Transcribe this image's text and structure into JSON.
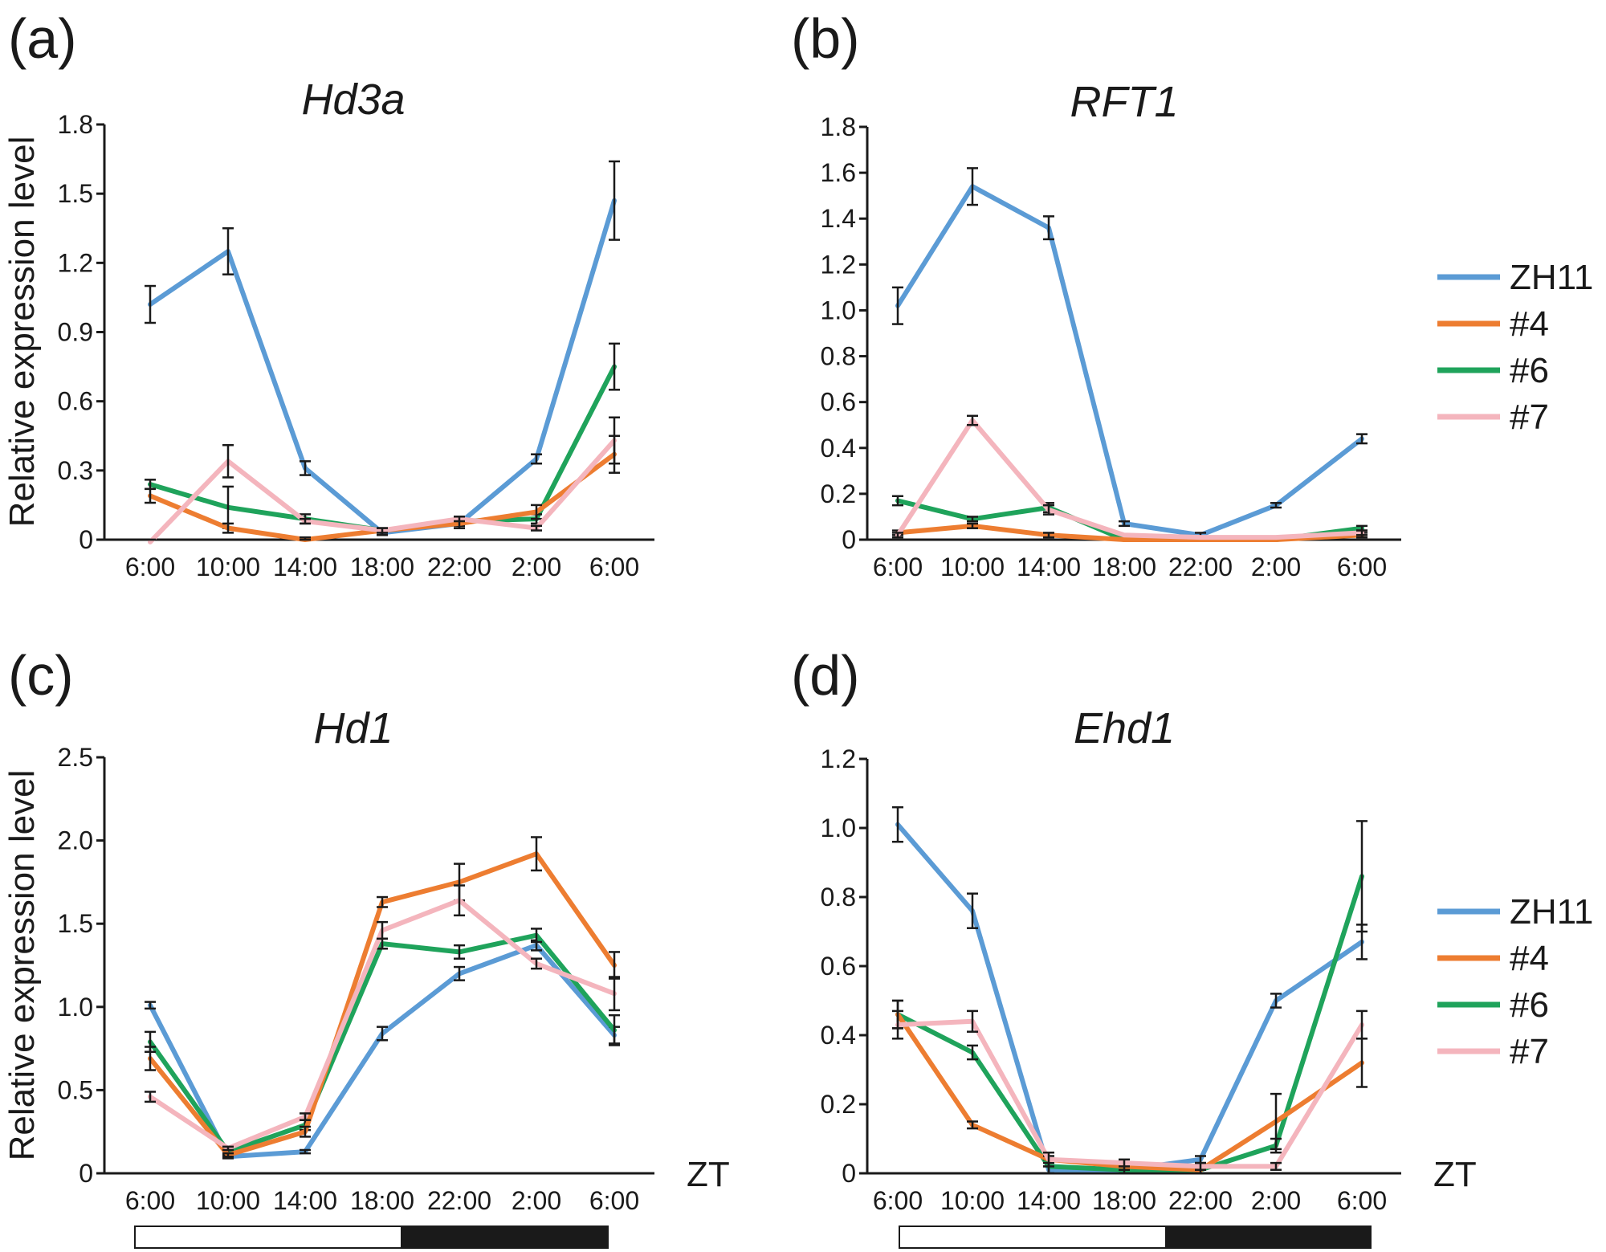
{
  "colors": {
    "ZH11": "#5b9bd5",
    "#4": "#ed7d31",
    "#6": "#1fa35b",
    "#7": "#f4b5bd",
    "axis": "#1a1a1a"
  },
  "legend": {
    "entries": [
      "ZH11",
      "#4",
      "#6",
      "#7"
    ]
  },
  "zt_label": "ZT",
  "chart_data": [
    {
      "panel": "(a)",
      "title": "Hd3a",
      "type": "line",
      "ylabel": "Relative expression level",
      "categories": [
        "6:00",
        "10:00",
        "14:00",
        "18:00",
        "22:00",
        "2:00",
        "6:00"
      ],
      "ylim": [
        0,
        1.8
      ],
      "yticks": [
        "0",
        "0.3",
        "0.6",
        "0.9",
        "1.2",
        "1.5",
        "1.8"
      ],
      "ytick_values": [
        0,
        0.3,
        0.6,
        0.9,
        1.2,
        1.5,
        1.8
      ],
      "series": [
        {
          "name": "ZH11",
          "values": [
            1.02,
            1.25,
            0.31,
            0.03,
            0.07,
            0.35,
            1.47
          ],
          "errors": [
            0.08,
            0.1,
            0.03,
            0.01,
            0.02,
            0.02,
            0.17
          ]
        },
        {
          "name": "#4",
          "values": [
            0.19,
            0.05,
            0.0,
            0.04,
            0.07,
            0.12,
            0.37
          ],
          "errors": [
            0.03,
            0.02,
            0.01,
            0.01,
            0.02,
            0.03,
            0.08
          ]
        },
        {
          "name": "#6",
          "values": [
            0.24,
            0.14,
            0.09,
            0.04,
            0.08,
            0.09,
            0.75
          ],
          "errors": [
            0.02,
            0.09,
            0.02,
            0.01,
            0.02,
            0.02,
            0.1
          ]
        },
        {
          "name": "#7",
          "values": [
            -0.01,
            0.34,
            0.08,
            0.04,
            0.09,
            0.05,
            0.43
          ],
          "errors": [
            0.01,
            0.07,
            0.01,
            0.01,
            0.01,
            0.01,
            0.1
          ]
        }
      ],
      "legend": true,
      "grid": false
    },
    {
      "panel": "(b)",
      "title": "RFT1",
      "type": "line",
      "ylabel": "",
      "categories": [
        "6:00",
        "10:00",
        "14:00",
        "18:00",
        "22:00",
        "2:00",
        "6:00"
      ],
      "ylim": [
        0,
        1.8
      ],
      "yticks": [
        "0",
        "0.2",
        "0.4",
        "0.6",
        "0.8",
        "1.0",
        "1.2",
        "1.4",
        "1.6",
        "1.8"
      ],
      "ytick_values": [
        0,
        0.2,
        0.4,
        0.6,
        0.8,
        1.0,
        1.2,
        1.4,
        1.6,
        1.8
      ],
      "series": [
        {
          "name": "ZH11",
          "values": [
            1.02,
            1.54,
            1.36,
            0.07,
            0.02,
            0.15,
            0.44
          ],
          "errors": [
            0.08,
            0.08,
            0.05,
            0.01,
            0.01,
            0.01,
            0.02
          ]
        },
        {
          "name": "#4",
          "values": [
            0.03,
            0.06,
            0.02,
            0.0,
            0.0,
            0.0,
            0.02
          ],
          "errors": [
            0.01,
            0.01,
            0.01,
            0.0,
            0.0,
            0.0,
            0.01
          ]
        },
        {
          "name": "#6",
          "values": [
            0.17,
            0.09,
            0.14,
            0.0,
            0.0,
            0.0,
            0.05
          ],
          "errors": [
            0.02,
            0.01,
            0.02,
            0.0,
            0.0,
            0.0,
            0.01
          ]
        },
        {
          "name": "#7",
          "values": [
            0.02,
            0.52,
            0.13,
            0.02,
            0.01,
            0.01,
            0.03
          ],
          "errors": [
            0.01,
            0.02,
            0.02,
            0.0,
            0.0,
            0.0,
            0.01
          ]
        }
      ],
      "legend": true,
      "grid": false
    },
    {
      "panel": "(c)",
      "title": "Hd1",
      "type": "line",
      "ylabel": "Relative expression level",
      "categories": [
        "6:00",
        "10:00",
        "14:00",
        "18:00",
        "22:00",
        "2:00",
        "6:00"
      ],
      "ylim": [
        0,
        2.5
      ],
      "yticks": [
        "0",
        "0.5",
        "1.0",
        "1.5",
        "2.0",
        "2.5"
      ],
      "ytick_values": [
        0,
        0.5,
        1.0,
        1.5,
        2.0,
        2.5
      ],
      "series": [
        {
          "name": "ZH11",
          "values": [
            1.01,
            0.1,
            0.13,
            0.84,
            1.2,
            1.37,
            0.83
          ],
          "errors": [
            0.02,
            0.01,
            0.01,
            0.04,
            0.04,
            0.03,
            0.05
          ]
        },
        {
          "name": "#4",
          "values": [
            0.69,
            0.11,
            0.25,
            1.63,
            1.75,
            1.92,
            1.25
          ],
          "errors": [
            0.07,
            0.01,
            0.03,
            0.03,
            0.11,
            0.1,
            0.08
          ]
        },
        {
          "name": "#6",
          "values": [
            0.79,
            0.13,
            0.29,
            1.38,
            1.33,
            1.43,
            0.86
          ],
          "errors": [
            0.06,
            0.01,
            0.03,
            0.03,
            0.04,
            0.04,
            0.09
          ]
        },
        {
          "name": "#7",
          "values": [
            0.46,
            0.15,
            0.34,
            1.46,
            1.64,
            1.26,
            1.08
          ],
          "errors": [
            0.03,
            0.01,
            0.02,
            0.05,
            0.09,
            0.03,
            0.1
          ]
        }
      ],
      "legend": false,
      "grid": false
    },
    {
      "panel": "(d)",
      "title": "Ehd1",
      "type": "line",
      "ylabel": "",
      "categories": [
        "6:00",
        "10:00",
        "14:00",
        "18:00",
        "22:00",
        "2:00",
        "6:00"
      ],
      "ylim": [
        0,
        1.2
      ],
      "yticks": [
        "0",
        "0.2",
        "0.4",
        "0.6",
        "0.8",
        "1.0",
        "1.2"
      ],
      "ytick_values": [
        0,
        0.2,
        0.4,
        0.6,
        0.8,
        1.0,
        1.2
      ],
      "series": [
        {
          "name": "ZH11",
          "values": [
            1.01,
            0.76,
            0.01,
            0.01,
            0.04,
            0.5,
            0.67
          ],
          "errors": [
            0.05,
            0.05,
            0.01,
            0.01,
            0.01,
            0.02,
            0.05
          ]
        },
        {
          "name": "#4",
          "values": [
            0.46,
            0.14,
            0.04,
            0.02,
            0.01,
            0.15,
            0.32
          ],
          "errors": [
            0.04,
            0.01,
            0.01,
            0.01,
            0.01,
            0.08,
            0.07
          ]
        },
        {
          "name": "#6",
          "values": [
            0.46,
            0.35,
            0.02,
            0.01,
            0.01,
            0.08,
            0.86
          ],
          "errors": [
            0.04,
            0.02,
            0.02,
            0.01,
            0.01,
            0.02,
            0.16
          ]
        },
        {
          "name": "#7",
          "values": [
            0.43,
            0.44,
            0.04,
            0.03,
            0.02,
            0.02,
            0.43
          ],
          "errors": [
            0.04,
            0.03,
            0.02,
            0.01,
            0.01,
            0.01,
            0.04
          ]
        }
      ],
      "legend": true,
      "grid": false
    }
  ]
}
